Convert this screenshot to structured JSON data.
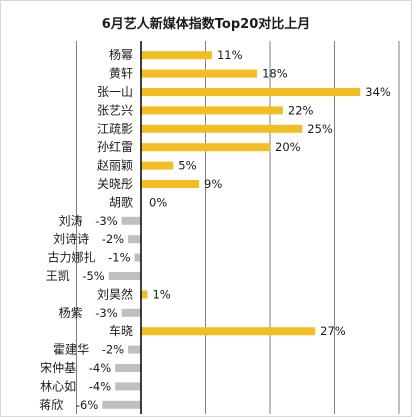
{
  "chart_data": {
    "type": "bar",
    "orientation": "horizontal",
    "title": "6月艺人新媒体指数Top20对比上月",
    "xlim": [
      -10,
      40
    ],
    "grid": "vertical",
    "value_suffix": "%",
    "colors": {
      "positive": "#F2BE22",
      "negative": "#BFBFBF",
      "grid": "#7F7F7F",
      "axis": "#000000",
      "text": "#1A1A1A"
    },
    "categories": [
      "杨幂",
      "黄轩",
      "张一山",
      "张艺兴",
      "江疏影",
      "孙红雷",
      "赵丽颖",
      "关晓彤",
      "胡歌",
      "刘涛",
      "刘诗诗",
      "古力娜扎",
      "王凯",
      "刘昊然",
      "杨紫",
      "车晓",
      "霍建华",
      "宋仲基",
      "林心如",
      "蒋欣"
    ],
    "values": [
      11,
      18,
      34,
      22,
      25,
      20,
      5,
      9,
      0,
      -3,
      -2,
      -1,
      -5,
      1,
      -3,
      27,
      -2,
      -4,
      -4,
      -6
    ],
    "data_labels": [
      "11%",
      "18%",
      "34%",
      "22%",
      "25%",
      "20%",
      "5%",
      "9%",
      "0%",
      "-3%",
      "-2%",
      "-1%",
      "-5%",
      "1%",
      "-3%",
      "27%",
      "-2%",
      "-4%",
      "-4%",
      "-6%"
    ]
  }
}
